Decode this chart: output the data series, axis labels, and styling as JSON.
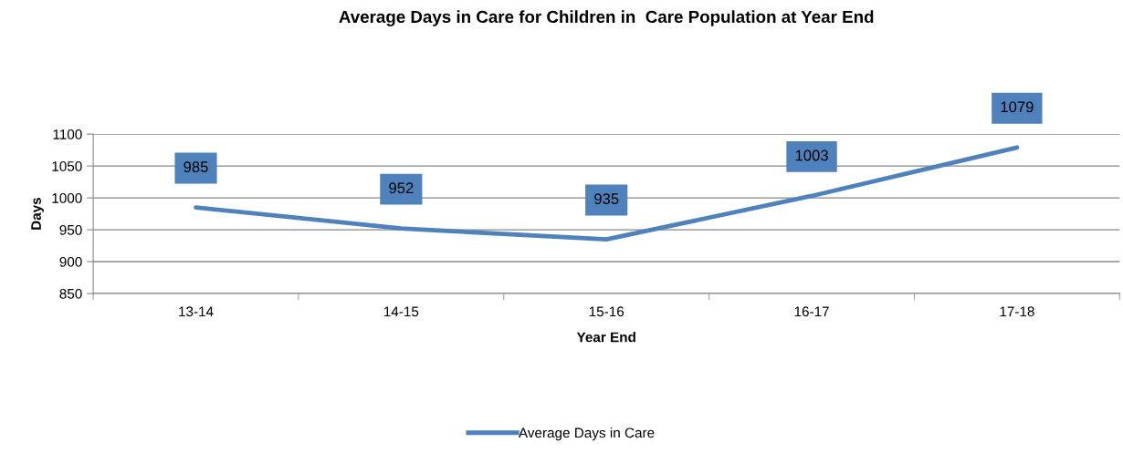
{
  "chart_data": {
    "type": "line",
    "title": "Average Days in Care for Children in  Care Population at Year End",
    "xlabel": "Year End",
    "ylabel": "Days",
    "categories": [
      "13-14",
      "14-15",
      "15-16",
      "16-17",
      "17-18"
    ],
    "series": [
      {
        "name": "Average Days in Care",
        "color": "#4f81bd",
        "values": [
          985,
          952,
          935,
          1003,
          1079
        ]
      }
    ],
    "ylim": [
      850,
      1100
    ],
    "yticks": [
      850,
      900,
      950,
      1000,
      1050,
      1100
    ],
    "grid": "y",
    "legend": "bottom",
    "data_labels": true,
    "marker": "none",
    "line_style": "solid"
  }
}
